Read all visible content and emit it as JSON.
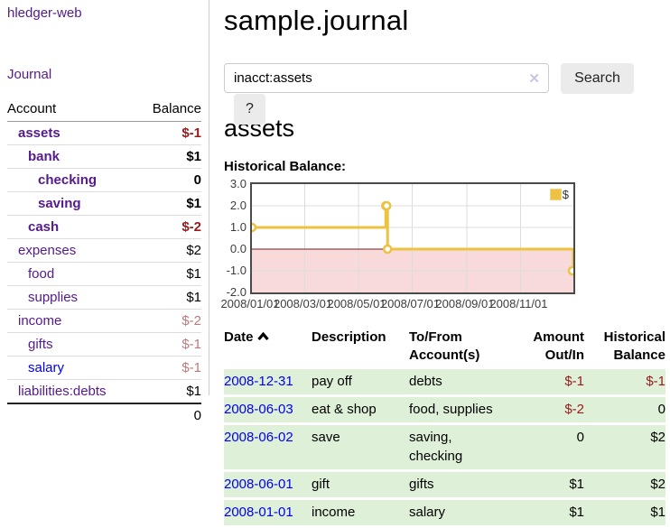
{
  "colors": {
    "link_purple": "#551a8b",
    "link_blue": "#0000ee",
    "negative_red": "#981a1a",
    "faded_red": "#b97c7c",
    "row_green": "#dff0d8",
    "series_gold": "#edc240"
  },
  "sidebar": {
    "brand": "hledger-web",
    "nav": {
      "journal": "Journal"
    },
    "accounts_table": {
      "headers": {
        "account": "Account",
        "balance": "Balance"
      },
      "rows": [
        {
          "name": "assets",
          "balance": "$-1",
          "level": 1,
          "bold": true,
          "balance_style": "negative",
          "link_style": "purple"
        },
        {
          "name": "bank",
          "balance": "$1",
          "level": 2,
          "bold": true,
          "balance_style": "normal",
          "link_style": "purple"
        },
        {
          "name": "checking",
          "balance": "0",
          "level": 3,
          "bold": true,
          "balance_style": "normal",
          "link_style": "purple"
        },
        {
          "name": "saving",
          "balance": "$1",
          "level": 3,
          "bold": true,
          "balance_style": "normal",
          "link_style": "purple"
        },
        {
          "name": "cash",
          "balance": "$-2",
          "level": 2,
          "bold": true,
          "balance_style": "negative",
          "link_style": "purple"
        },
        {
          "name": "expenses",
          "balance": "$2",
          "level": 1,
          "bold": false,
          "balance_style": "normal",
          "link_style": "purple"
        },
        {
          "name": "food",
          "balance": "$1",
          "level": 2,
          "bold": false,
          "balance_style": "normal",
          "link_style": "purple"
        },
        {
          "name": "supplies",
          "balance": "$1",
          "level": 2,
          "bold": false,
          "balance_style": "normal",
          "link_style": "purple"
        },
        {
          "name": "income",
          "balance": "$-2",
          "level": 1,
          "bold": false,
          "balance_style": "faded",
          "link_style": "purple"
        },
        {
          "name": "gifts",
          "balance": "$-1",
          "level": 2,
          "bold": false,
          "balance_style": "faded",
          "link_style": "purple"
        },
        {
          "name": "salary",
          "balance": "$-1",
          "level": 2,
          "bold": false,
          "balance_style": "faded",
          "link_style": "blue"
        },
        {
          "name": "liabilities:debts",
          "balance": "$1",
          "level": 1,
          "bold": false,
          "balance_style": "normal",
          "link_style": "purple"
        }
      ],
      "total": "0"
    }
  },
  "main": {
    "title": "sample.journal",
    "search": {
      "value": "inacct:assets",
      "clear_icon": "✕",
      "button_label": "Search",
      "help_label": "?"
    },
    "account_heading": "assets",
    "chart_heading": "Historical Balance:",
    "transactions": {
      "headers": {
        "date": "Date",
        "description": "Description",
        "accounts": "To/From Account(s)",
        "amount": "Amount Out/In",
        "balance": "Historical Balance"
      },
      "rows": [
        {
          "date": "2008-12-31",
          "description": "pay off",
          "accounts": "debts",
          "amount": "$-1",
          "amount_style": "negative",
          "balance": "$-1",
          "balance_style": "negative"
        },
        {
          "date": "2008-06-03",
          "description": "eat & shop",
          "accounts": "food, supplies",
          "amount": "$-2",
          "amount_style": "negative",
          "balance": "0",
          "balance_style": "normal"
        },
        {
          "date": "2008-06-02",
          "description": "save",
          "accounts": "saving, checking",
          "amount": "0",
          "amount_style": "normal",
          "balance": "$2",
          "balance_style": "normal"
        },
        {
          "date": "2008-06-01",
          "description": "gift",
          "accounts": "gifts",
          "amount": "$1",
          "amount_style": "normal",
          "balance": "$2",
          "balance_style": "normal"
        },
        {
          "date": "2008-01-01",
          "description": "income",
          "accounts": "salary",
          "amount": "$1",
          "amount_style": "normal",
          "balance": "$1",
          "balance_style": "normal"
        }
      ]
    }
  },
  "chart_data": {
    "type": "line",
    "style": "step-after",
    "title": "Historical Balance:",
    "series": [
      {
        "name": "$",
        "color": "#edc240",
        "points": [
          [
            "2008-01-01",
            1
          ],
          [
            "2008-06-01",
            2
          ],
          [
            "2008-06-02",
            2
          ],
          [
            "2008-06-03",
            0
          ],
          [
            "2008-12-31",
            -1
          ]
        ]
      }
    ],
    "x_range": [
      "2008-01-01",
      "2008-12-31"
    ],
    "x_ticks": [
      "2008/01/01",
      "2008/03/01",
      "2008/05/01",
      "2008/07/01",
      "2008/09/01",
      "2008/11/01"
    ],
    "y_ticks": [
      "3.0",
      "2.0",
      "1.0",
      "0.0",
      "-1.0",
      "-2.0"
    ],
    "ylim": [
      -2,
      3
    ],
    "grid": true,
    "legend": {
      "label": "$",
      "position": "top-right"
    },
    "negative_region_color": "#f9dada",
    "zero_line_color": "#7c1a1a",
    "grid_color": "#dcdcdc"
  }
}
